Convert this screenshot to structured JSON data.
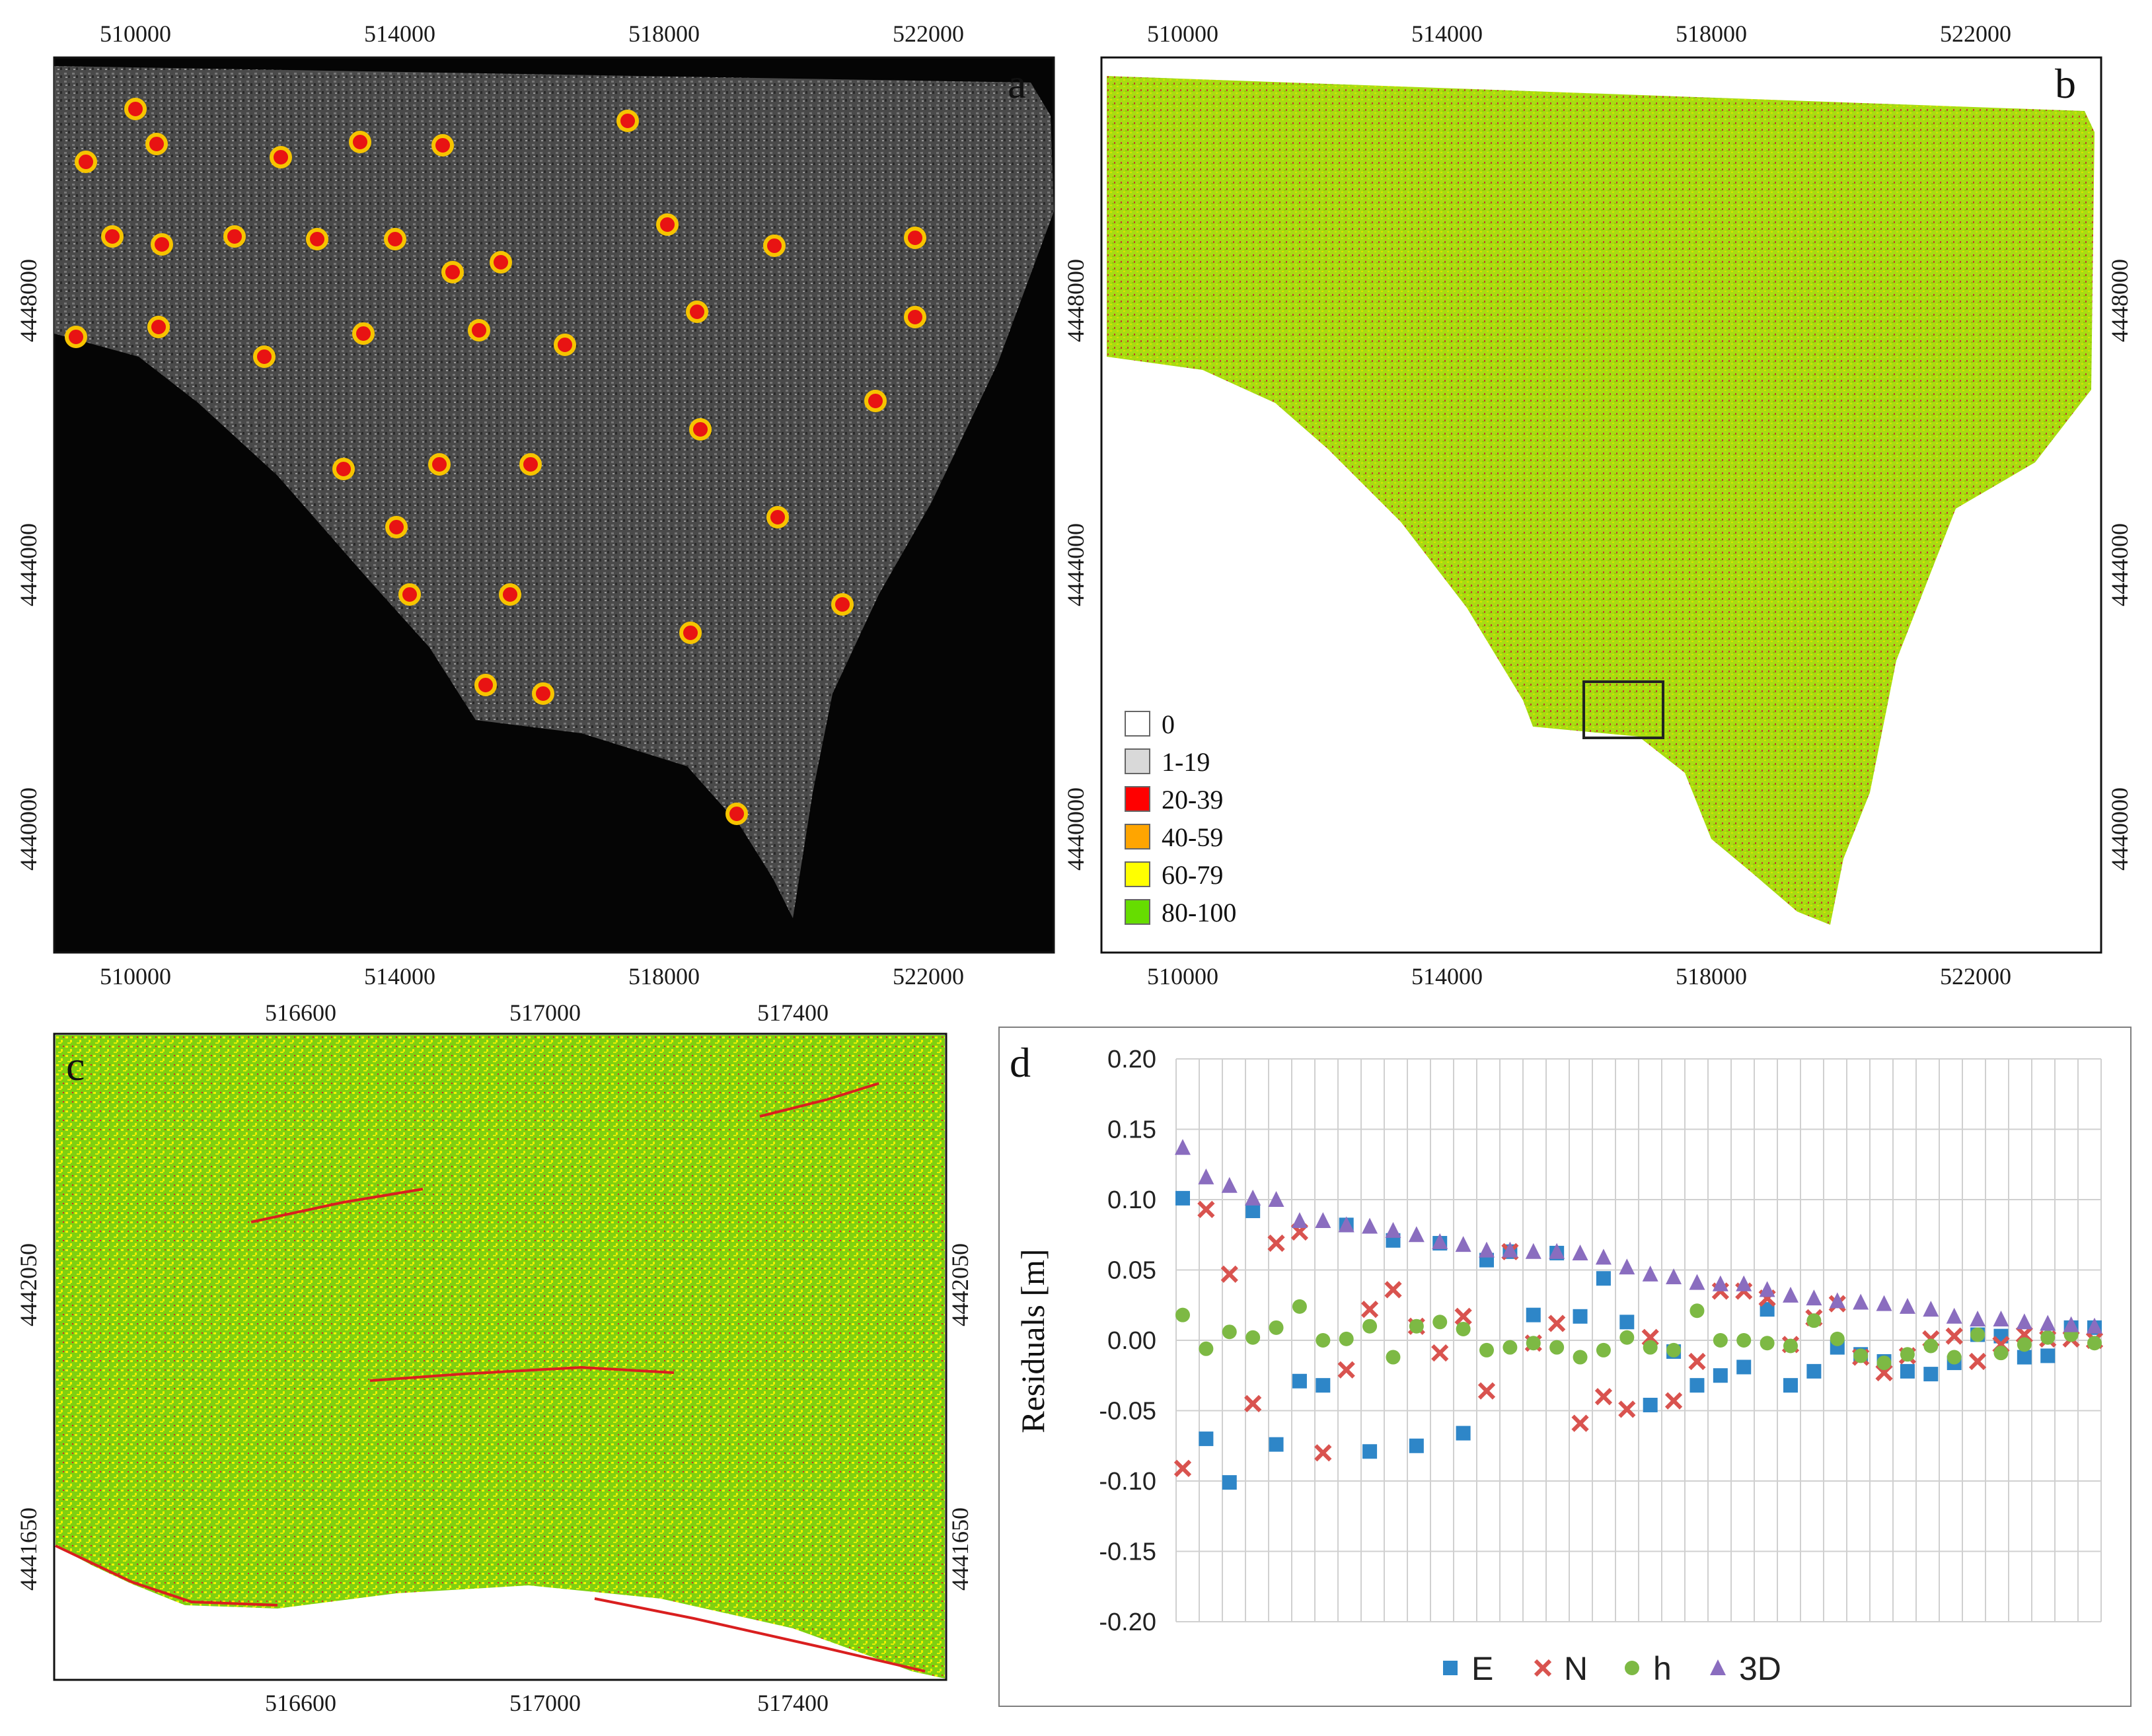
{
  "panels": {
    "a": {
      "label": "a",
      "x_ticks": [
        "510000",
        "514000",
        "518000",
        "522000"
      ],
      "y_ticks": [
        "4448000",
        "4444000",
        "4440000"
      ],
      "gcp_count": 39
    },
    "b": {
      "label": "b",
      "x_ticks": [
        "510000",
        "514000",
        "518000",
        "522000"
      ],
      "y_ticks": [
        "4448000",
        "4444000",
        "4440000"
      ],
      "legend": [
        {
          "label": "0",
          "color": "#ffffff"
        },
        {
          "label": "1-19",
          "color": "#d9d9d9"
        },
        {
          "label": "20-39",
          "color": "#ff0000"
        },
        {
          "label": "40-59",
          "color": "#ffa500"
        },
        {
          "label": "60-79",
          "color": "#ffff00"
        },
        {
          "label": "80-100",
          "color": "#66dd00"
        }
      ]
    },
    "c": {
      "label": "c",
      "x_ticks": [
        "516600",
        "517000",
        "517400"
      ],
      "y_ticks": [
        "4442050",
        "4441650"
      ]
    }
  },
  "chart_data": {
    "type": "scatter",
    "panel_label": "d",
    "ylabel": "Residuals [m]",
    "ylim": [
      -0.2,
      0.2
    ],
    "y_ticks": [
      "0.20",
      "0.15",
      "0.10",
      "0.05",
      "0.00",
      "-0.05",
      "-0.10",
      "-0.15",
      "-0.20"
    ],
    "grid": true,
    "legend_position": "bottom",
    "x": [
      1,
      2,
      3,
      4,
      5,
      6,
      7,
      8,
      9,
      10,
      11,
      12,
      13,
      14,
      15,
      16,
      17,
      18,
      19,
      20,
      21,
      22,
      23,
      24,
      25,
      26,
      27,
      28,
      29,
      30,
      31,
      32,
      33,
      34,
      35,
      36,
      37,
      38,
      39,
      40
    ],
    "series": [
      {
        "name": "E",
        "marker": "square",
        "color": "#2e86c8",
        "values": [
          0.101,
          -0.07,
          -0.101,
          0.092,
          -0.074,
          -0.029,
          -0.032,
          0.082,
          -0.079,
          0.071,
          -0.075,
          0.069,
          -0.066,
          0.057,
          0.063,
          0.018,
          0.062,
          0.017,
          0.044,
          0.013,
          -0.046,
          -0.008,
          -0.032,
          -0.025,
          -0.019,
          0.022,
          -0.032,
          -0.022,
          -0.005,
          -0.01,
          -0.015,
          -0.022,
          -0.024,
          -0.016,
          0.004,
          0.003,
          -0.012,
          -0.011,
          0.009,
          0.009
        ]
      },
      {
        "name": "N",
        "marker": "x",
        "color": "#d9534f",
        "values": [
          -0.091,
          0.093,
          0.047,
          -0.045,
          0.069,
          0.077,
          -0.08,
          -0.021,
          0.022,
          0.036,
          0.01,
          -0.009,
          0.017,
          -0.036,
          0.063,
          -0.002,
          0.012,
          -0.059,
          -0.04,
          -0.049,
          0.002,
          -0.043,
          -0.015,
          0.035,
          0.035,
          0.03,
          -0.003,
          0.016,
          0.026,
          -0.012,
          -0.023,
          -0.011,
          0.001,
          0.003,
          -0.015,
          -0.003,
          0.004,
          0.001,
          0.001,
          0.0
        ]
      },
      {
        "name": "h",
        "marker": "circle",
        "color": "#7db944",
        "values": [
          0.018,
          -0.006,
          0.006,
          0.002,
          0.009,
          0.024,
          0.0,
          0.001,
          0.01,
          -0.012,
          0.01,
          0.013,
          0.008,
          -0.007,
          -0.005,
          -0.002,
          -0.005,
          -0.012,
          -0.007,
          0.002,
          -0.005,
          -0.007,
          0.021,
          0.0,
          0.0,
          -0.002,
          -0.004,
          0.014,
          0.001,
          -0.011,
          -0.016,
          -0.01,
          -0.004,
          -0.012,
          0.004,
          -0.009,
          -0.003,
          0.002,
          0.004,
          -0.002
        ]
      },
      {
        "name": "3D",
        "marker": "triangle",
        "color": "#8a6dbf",
        "values": [
          0.137,
          0.116,
          0.11,
          0.101,
          0.1,
          0.085,
          0.085,
          0.082,
          0.081,
          0.078,
          0.075,
          0.07,
          0.068,
          0.064,
          0.064,
          0.063,
          0.063,
          0.062,
          0.059,
          0.052,
          0.047,
          0.045,
          0.041,
          0.04,
          0.04,
          0.036,
          0.032,
          0.03,
          0.028,
          0.027,
          0.026,
          0.024,
          0.022,
          0.017,
          0.015,
          0.015,
          0.013,
          0.012,
          0.011,
          0.01
        ]
      }
    ]
  }
}
